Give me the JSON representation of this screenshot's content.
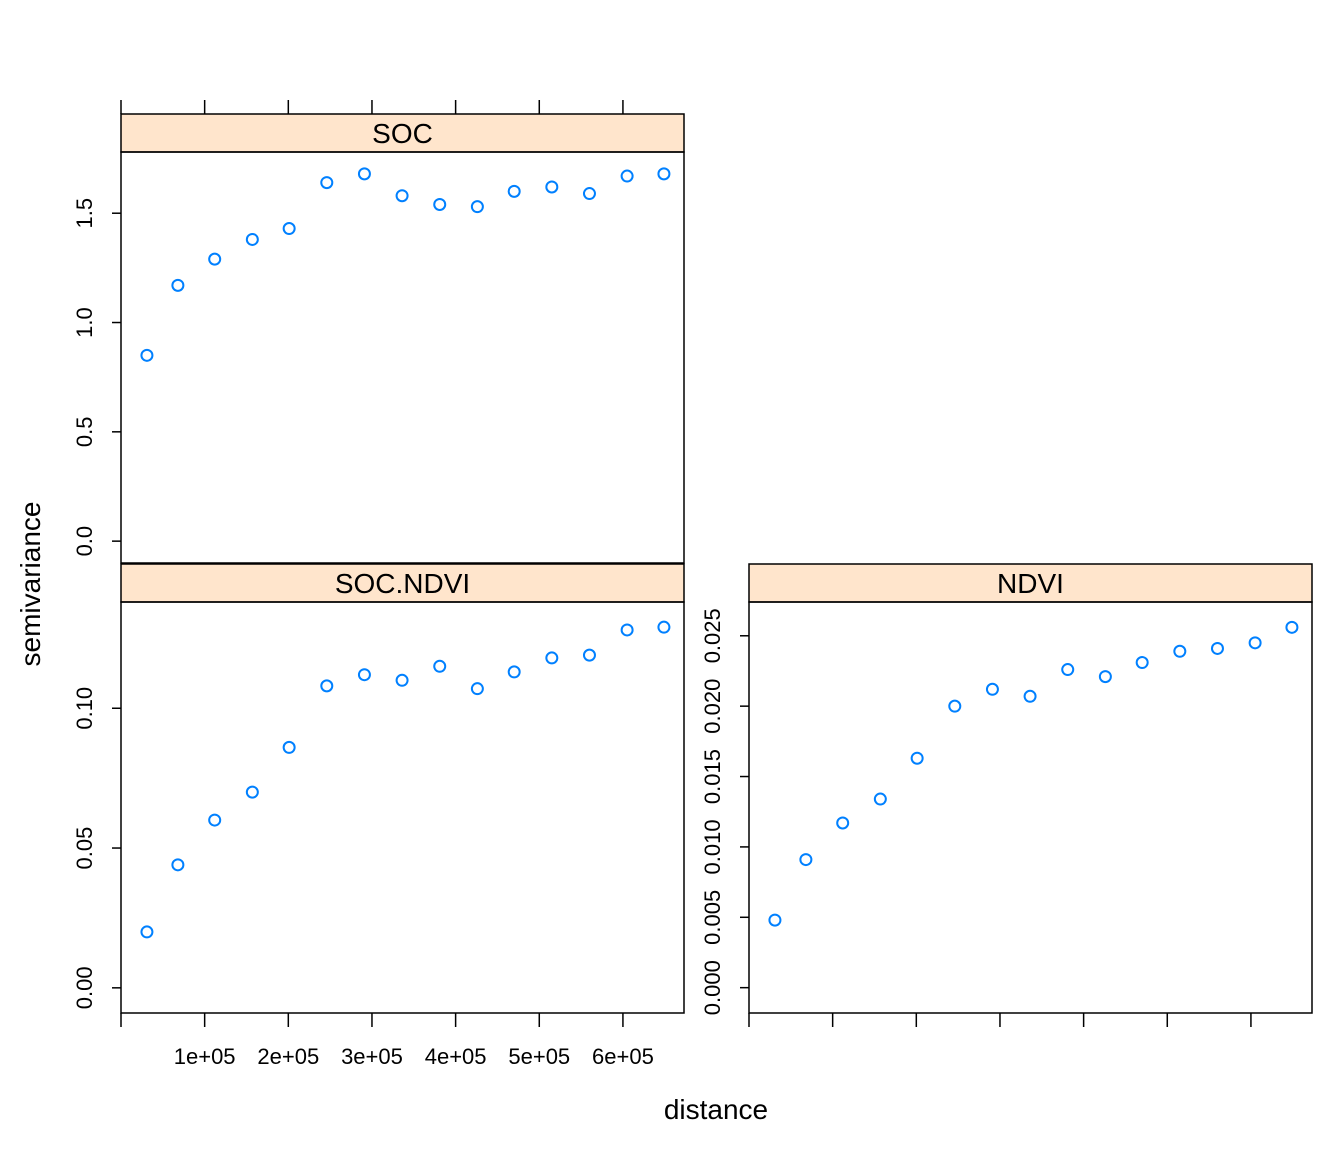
{
  "chart_data": {
    "type": "scatter",
    "layout": "lattice 2x2 panels, top-right empty",
    "xlabel": "distance",
    "ylabel": "semivariance",
    "colors": {
      "points": "#0080ff",
      "strip_background": "#ffe5cc",
      "frame": "#000000"
    },
    "x_tick_labels": [
      "1e+05",
      "2e+05",
      "3e+05",
      "4e+05",
      "5e+05",
      "6e+05"
    ],
    "panels": [
      {
        "title": "SOC",
        "xlim": [
          0,
          673000
        ],
        "ylim": [
          -0.1,
          1.78
        ],
        "y_ticks": [
          0.0,
          0.5,
          1.0,
          1.5
        ],
        "y_tick_labels": [
          "0.0",
          "0.5",
          "1.0",
          "1.5"
        ],
        "x": [
          31000,
          68000,
          112000,
          157000,
          201000,
          246000,
          291000,
          336000,
          381000,
          426000,
          470000,
          515000,
          560000,
          605000,
          649000
        ],
        "y": [
          0.85,
          1.17,
          1.29,
          1.38,
          1.43,
          1.64,
          1.68,
          1.58,
          1.54,
          1.53,
          1.6,
          1.62,
          1.59,
          1.67,
          1.68
        ]
      },
      {
        "title": "SOC.NDVI",
        "xlim": [
          0,
          673000
        ],
        "ylim": [
          -0.009,
          0.138
        ],
        "y_ticks": [
          0.0,
          0.05,
          0.1
        ],
        "y_tick_labels": [
          "0.00",
          "0.05",
          "0.10"
        ],
        "x": [
          31000,
          68000,
          112000,
          157000,
          201000,
          246000,
          291000,
          336000,
          381000,
          426000,
          470000,
          515000,
          560000,
          605000,
          649000
        ],
        "y": [
          0.02,
          0.044,
          0.06,
          0.07,
          0.086,
          0.108,
          0.112,
          0.11,
          0.115,
          0.107,
          0.113,
          0.118,
          0.119,
          0.128,
          0.129
        ]
      },
      {
        "title": "NDVI",
        "xlim": [
          0,
          673000
        ],
        "ylim": [
          -0.0018,
          0.0274
        ],
        "y_ticks": [
          0.0,
          0.005,
          0.01,
          0.015,
          0.02,
          0.025
        ],
        "y_tick_labels": [
          "0.000",
          "0.005",
          "0.010",
          "0.015",
          "0.020",
          "0.025"
        ],
        "x": [
          31000,
          68000,
          112000,
          157000,
          201000,
          246000,
          291000,
          336000,
          381000,
          426000,
          470000,
          515000,
          560000,
          605000,
          649000
        ],
        "y": [
          0.0048,
          0.0091,
          0.0117,
          0.0134,
          0.0163,
          0.02,
          0.0212,
          0.0207,
          0.0226,
          0.0221,
          0.0231,
          0.0239,
          0.0241,
          0.0245,
          0.0256
        ]
      }
    ]
  }
}
